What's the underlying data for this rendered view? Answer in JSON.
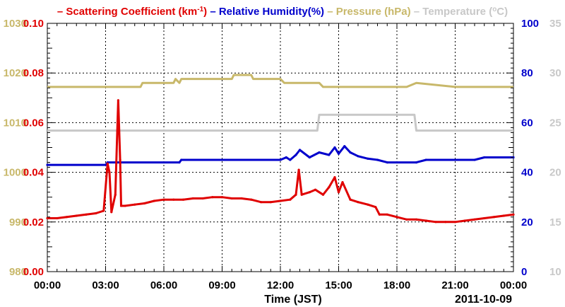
{
  "legend": [
    {
      "label": "Scattering Coefficient (km",
      "sup": "-1",
      "suffix": ")",
      "color": "#e00000"
    },
    {
      "label": "Relative Humidity(%)",
      "color": "#0000cc"
    },
    {
      "label": "Pressure (hPa)",
      "color": "#c8b86a"
    },
    {
      "label": "Temperature (",
      "sup": "o",
      "suffix": "C)",
      "color": "#c8c8c8"
    }
  ],
  "chart_data": {
    "type": "line",
    "xlabel": "Time (JST)",
    "date": "2011-10-09",
    "x_ticks": [
      "00:00",
      "03:00",
      "06:00",
      "09:00",
      "12:00",
      "15:00",
      "18:00",
      "21:00",
      "00:00"
    ],
    "xlim": [
      0,
      24
    ],
    "grid": true,
    "axes": {
      "pressure": {
        "side": "left-outer",
        "range": [
          980,
          1030
        ],
        "ticks": [
          "980",
          "990",
          "1000",
          "1010",
          "1020",
          "1030"
        ],
        "color": "#c8b86a"
      },
      "scattering": {
        "side": "left-inner",
        "range": [
          0,
          0.1
        ],
        "ticks": [
          "0.00",
          "0.02",
          "0.04",
          "0.06",
          "0.08",
          "0.10"
        ],
        "color": "#e00000"
      },
      "humidity": {
        "side": "right-inner",
        "range": [
          0,
          100
        ],
        "ticks": [
          "0",
          "20",
          "40",
          "60",
          "80",
          "100"
        ],
        "color": "#0000cc"
      },
      "temperature": {
        "side": "right-outer",
        "range": [
          10,
          35
        ],
        "ticks": [
          "10",
          "15",
          "20",
          "25",
          "30",
          "35"
        ],
        "color": "#c8c8c8"
      }
    },
    "series": [
      {
        "name": "Pressure (hPa)",
        "axis": "pressure",
        "color": "#c8b86a",
        "x": [
          0,
          4.8,
          4.9,
          6.5,
          6.6,
          6.8,
          6.9,
          9.5,
          9.6,
          10.5,
          10.6,
          12.0,
          12.2,
          14.0,
          14.2,
          18.5,
          19.0,
          21.0,
          21.2,
          24.0
        ],
        "y": [
          1017.2,
          1017.2,
          1018.0,
          1018.0,
          1018.8,
          1018.0,
          1018.8,
          1018.8,
          1019.6,
          1019.6,
          1018.8,
          1018.8,
          1018.0,
          1018.0,
          1017.2,
          1017.2,
          1018.0,
          1017.2,
          1017.2,
          1017.2
        ]
      },
      {
        "name": "Temperature (C)",
        "axis": "temperature",
        "color": "#c8c8c8",
        "x": [
          0,
          13.9,
          14.0,
          18.9,
          19.0,
          24.0
        ],
        "y": [
          24.2,
          24.2,
          25.8,
          25.8,
          24.2,
          24.2
        ]
      },
      {
        "name": "Relative Humidity(%)",
        "axis": "humidity",
        "color": "#0000cc",
        "x": [
          0,
          3.0,
          3.1,
          6.8,
          6.9,
          12.0,
          12.3,
          12.5,
          12.8,
          13.0,
          13.5,
          14.0,
          14.5,
          14.8,
          15.0,
          15.3,
          15.6,
          16.0,
          16.5,
          17.0,
          17.5,
          19.0,
          19.5,
          22.0,
          22.5,
          24.0
        ],
        "y": [
          43.0,
          43.0,
          44.0,
          44.0,
          45.0,
          45.0,
          46.0,
          45.0,
          47.0,
          49.0,
          46.0,
          48.0,
          47.0,
          50.0,
          47.5,
          50.5,
          48.0,
          46.5,
          45.5,
          45.0,
          44.0,
          44.0,
          45.0,
          45.0,
          46.0,
          46.0
        ]
      },
      {
        "name": "Scattering Coefficient (km-1)",
        "axis": "scattering",
        "color": "#e00000",
        "x": [
          0,
          0.5,
          1.0,
          1.5,
          2.0,
          2.5,
          2.9,
          3.1,
          3.2,
          3.3,
          3.5,
          3.65,
          3.75,
          3.8,
          4.0,
          4.5,
          5.0,
          5.5,
          6.0,
          6.5,
          7.0,
          7.5,
          8.0,
          8.5,
          9.0,
          9.5,
          10.0,
          10.5,
          11.0,
          11.5,
          12.0,
          12.5,
          12.8,
          12.95,
          13.1,
          13.5,
          13.8,
          14.2,
          14.5,
          14.8,
          15.0,
          15.2,
          15.6,
          16.0,
          16.5,
          16.9,
          17.1,
          17.5,
          18.0,
          18.5,
          19.0,
          19.5,
          20.0,
          20.5,
          21.0,
          21.5,
          22.0,
          22.5,
          23.0,
          23.5,
          24.0
        ],
        "y": [
          0.0215,
          0.0215,
          0.022,
          0.0225,
          0.023,
          0.0235,
          0.0245,
          0.0435,
          0.04,
          0.024,
          0.031,
          0.069,
          0.045,
          0.0265,
          0.0265,
          0.027,
          0.0275,
          0.0285,
          0.029,
          0.029,
          0.029,
          0.0295,
          0.0295,
          0.03,
          0.03,
          0.0295,
          0.0295,
          0.029,
          0.028,
          0.028,
          0.0285,
          0.029,
          0.031,
          0.041,
          0.031,
          0.032,
          0.033,
          0.031,
          0.034,
          0.038,
          0.032,
          0.036,
          0.029,
          0.028,
          0.027,
          0.026,
          0.023,
          0.023,
          0.022,
          0.021,
          0.021,
          0.0205,
          0.02,
          0.02,
          0.02,
          0.0205,
          0.021,
          0.0215,
          0.022,
          0.0225,
          0.023
        ]
      }
    ]
  }
}
